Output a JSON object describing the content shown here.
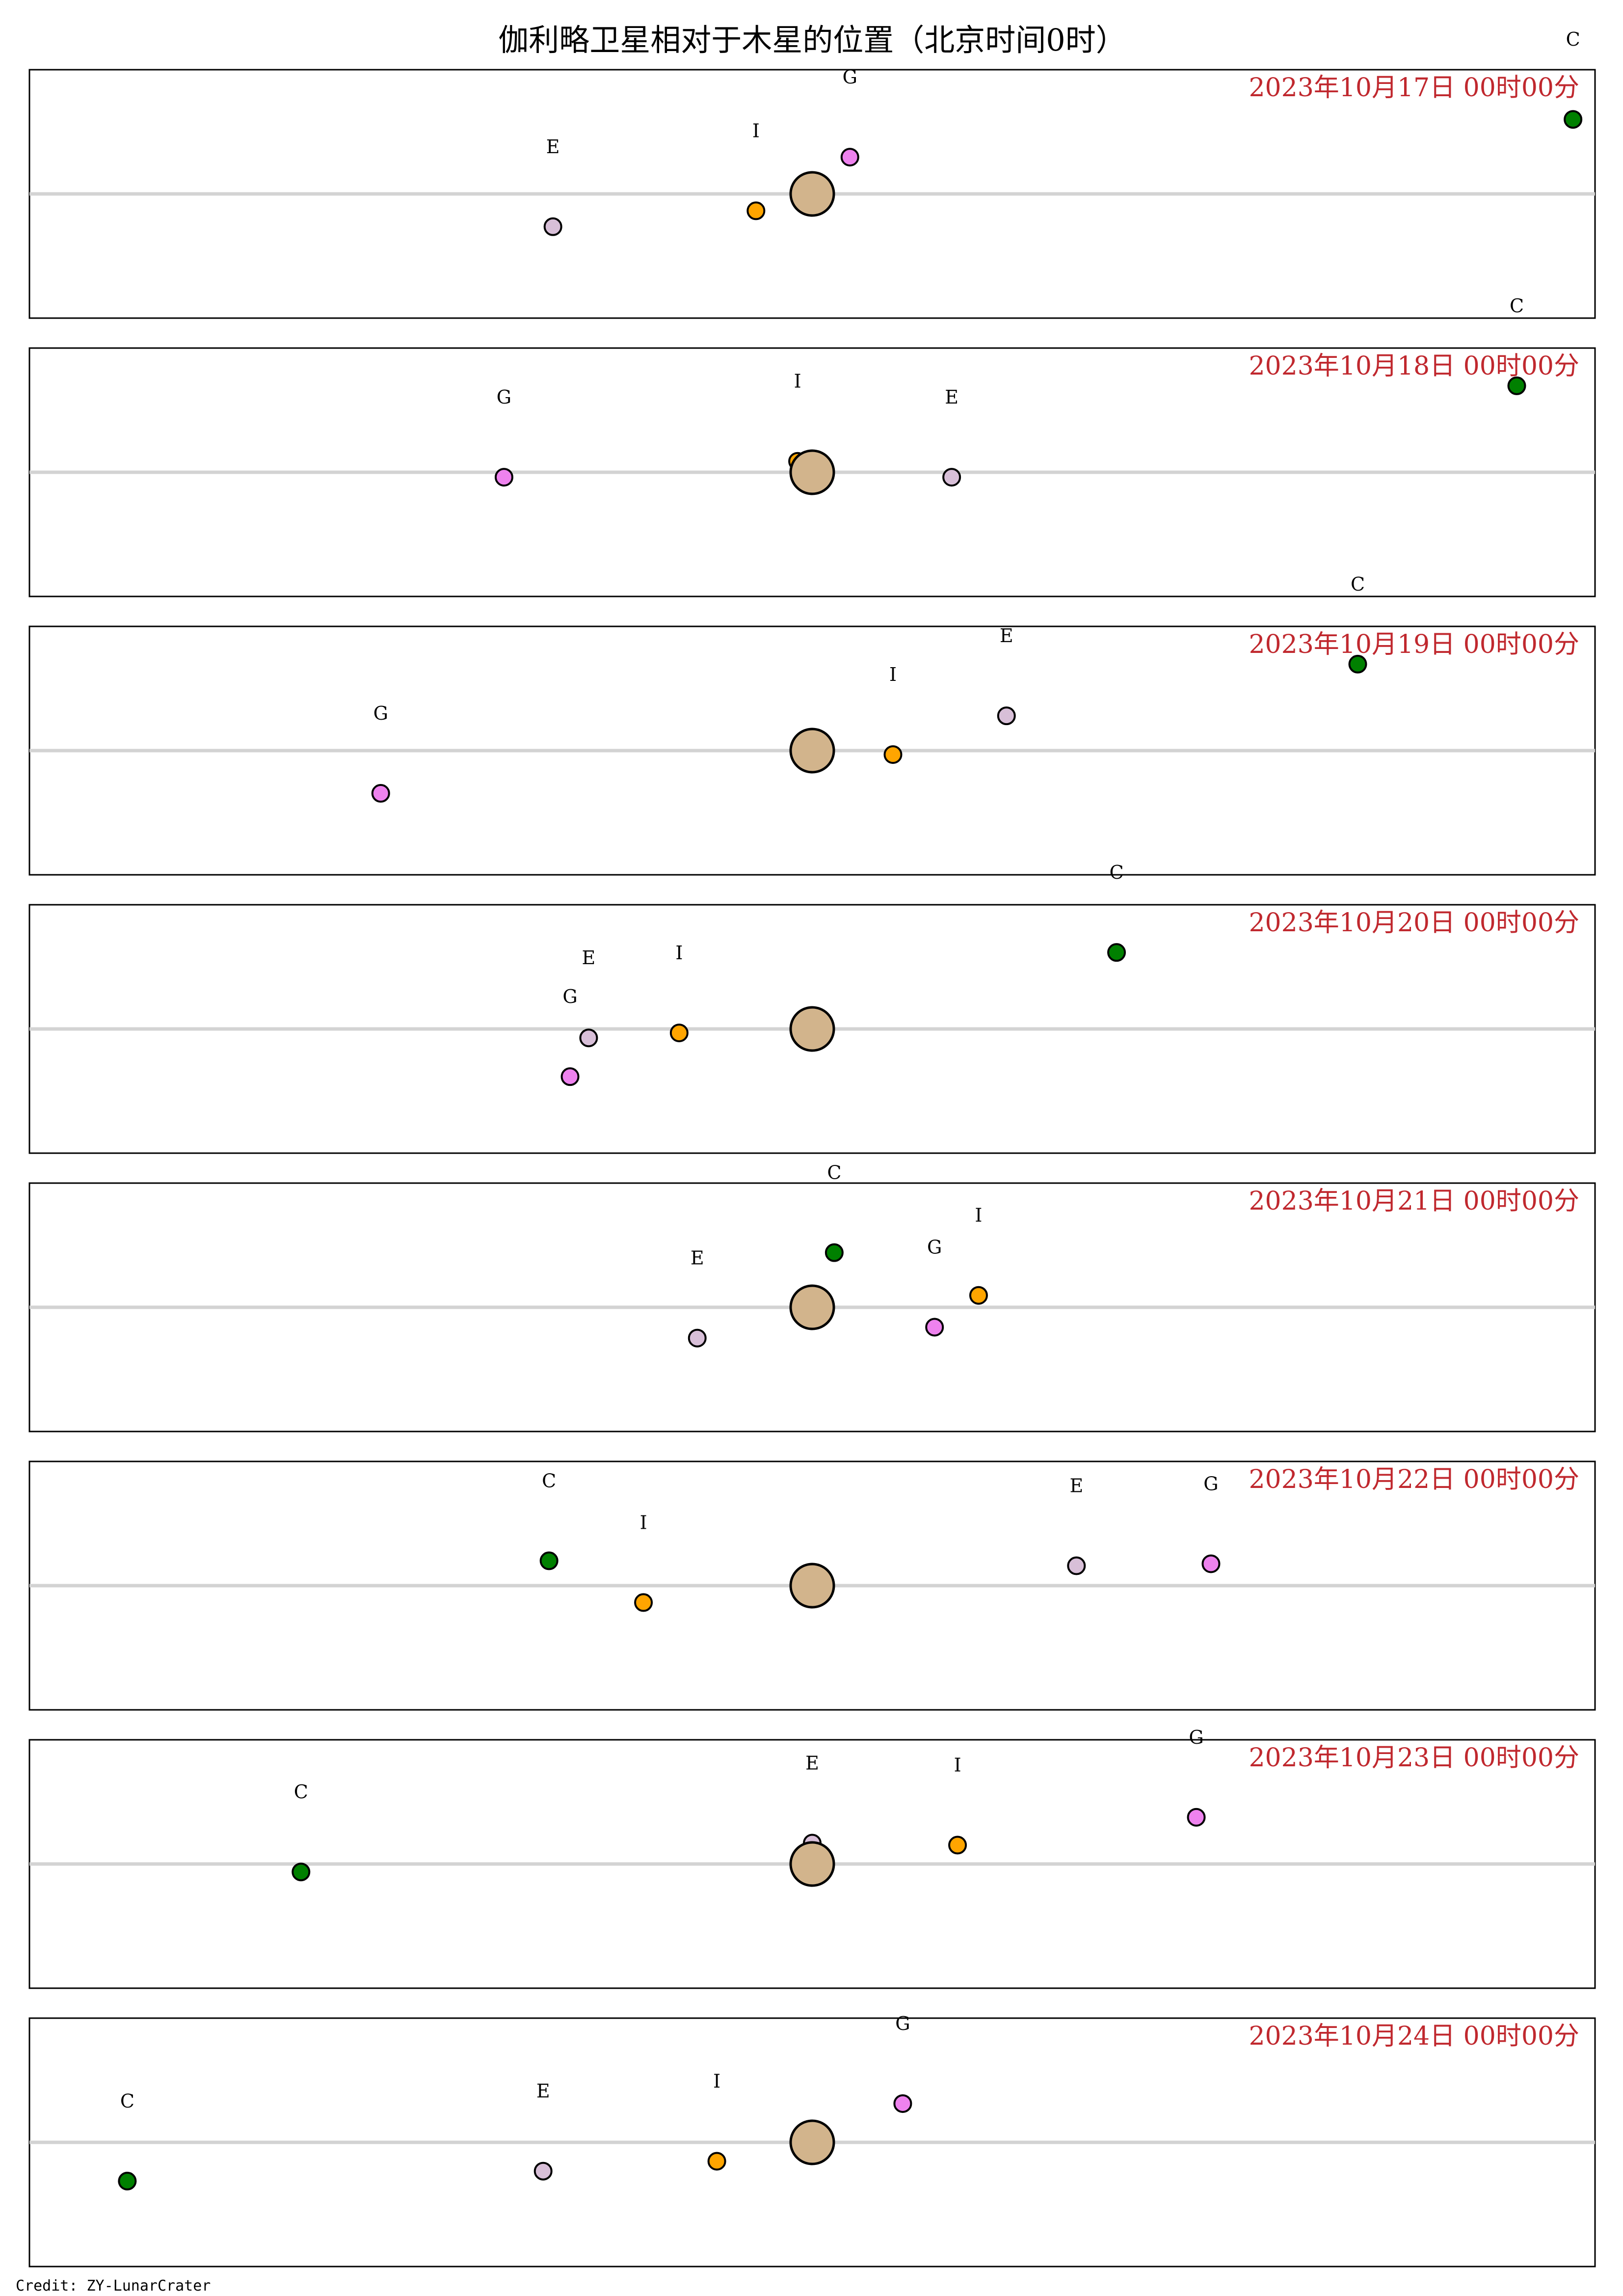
{
  "chart_data": {
    "type": "scatter",
    "title": "伽利略卫星相对于木星的位置（北京时间0时）",
    "credit": "Credit: ZY-LunarCrater",
    "xlim": [
      -16,
      16
    ],
    "ylim": [
      -1.25,
      1.25
    ],
    "colors": {
      "jupiter": "#d2b48c",
      "I": "#ffa500",
      "E": "#d8bfd8",
      "G": "#ee82ee",
      "C": "#008000",
      "date_text": "#c0282e",
      "reference_line": "#d3d3d3"
    },
    "panels": [
      {
        "date": "2023年10月17日 00时00分",
        "moons": [
          {
            "name": "I",
            "x": -1.15,
            "y": -0.17
          },
          {
            "name": "E",
            "x": -5.3,
            "y": -0.33
          },
          {
            "name": "G",
            "x": 0.77,
            "y": 0.37
          },
          {
            "name": "C",
            "x": 15.55,
            "y": 0.75
          }
        ]
      },
      {
        "date": "2023年10月18日 00时00分",
        "moons": [
          {
            "name": "I",
            "x": -0.3,
            "y": 0.11
          },
          {
            "name": "E",
            "x": 2.85,
            "y": -0.05
          },
          {
            "name": "G",
            "x": -6.3,
            "y": -0.05
          },
          {
            "name": "C",
            "x": 14.4,
            "y": 0.87
          }
        ]
      },
      {
        "date": "2023年10月19日 00时00分",
        "moons": [
          {
            "name": "I",
            "x": 1.65,
            "y": -0.04
          },
          {
            "name": "E",
            "x": 3.97,
            "y": 0.35
          },
          {
            "name": "G",
            "x": -8.82,
            "y": -0.43
          },
          {
            "name": "C",
            "x": 11.15,
            "y": 0.87
          }
        ]
      },
      {
        "date": "2023年10月20日 00时00分",
        "moons": [
          {
            "name": "I",
            "x": -2.72,
            "y": -0.04
          },
          {
            "name": "E",
            "x": -4.57,
            "y": -0.09
          },
          {
            "name": "G",
            "x": -4.95,
            "y": -0.48
          },
          {
            "name": "C",
            "x": 6.22,
            "y": 0.77
          }
        ]
      },
      {
        "date": "2023年10月21日 00时00分",
        "moons": [
          {
            "name": "I",
            "x": 3.4,
            "y": 0.12
          },
          {
            "name": "E",
            "x": -2.35,
            "y": -0.31
          },
          {
            "name": "G",
            "x": 2.5,
            "y": -0.2
          },
          {
            "name": "C",
            "x": 0.45,
            "y": 0.55
          }
        ]
      },
      {
        "date": "2023年10月22日 00时00分",
        "moons": [
          {
            "name": "I",
            "x": -3.45,
            "y": -0.17
          },
          {
            "name": "E",
            "x": 5.4,
            "y": 0.2
          },
          {
            "name": "G",
            "x": 8.15,
            "y": 0.22
          },
          {
            "name": "C",
            "x": -5.38,
            "y": 0.25
          }
        ]
      },
      {
        "date": "2023年10月23日 00时00分",
        "moons": [
          {
            "name": "I",
            "x": 2.97,
            "y": 0.19
          },
          {
            "name": "E",
            "x": 0.0,
            "y": 0.21
          },
          {
            "name": "G",
            "x": 7.85,
            "y": 0.47
          },
          {
            "name": "C",
            "x": -10.45,
            "y": -0.08
          }
        ]
      },
      {
        "date": "2023年10月24日 00时00分",
        "moons": [
          {
            "name": "I",
            "x": -1.95,
            "y": -0.19
          },
          {
            "name": "E",
            "x": -5.5,
            "y": -0.29
          },
          {
            "name": "G",
            "x": 1.85,
            "y": 0.39
          },
          {
            "name": "C",
            "x": -14.0,
            "y": -0.39
          }
        ]
      }
    ]
  }
}
